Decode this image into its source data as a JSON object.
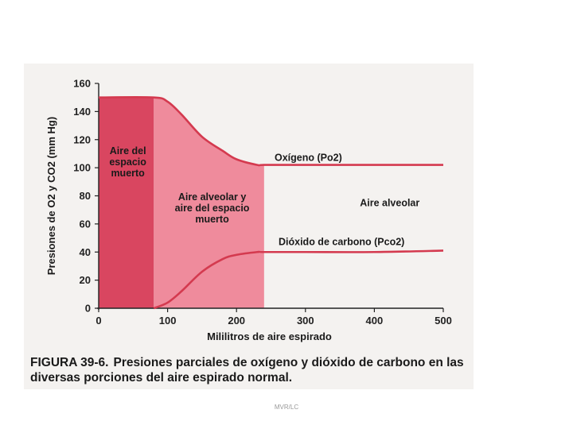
{
  "chart_data": {
    "type": "line",
    "ylabel": "Presiones de O2 y CO2 (mm Hg)",
    "xlabel": "Mililitros de aire espirado",
    "xlim": [
      0,
      500
    ],
    "ylim": [
      0,
      160
    ],
    "x_ticks": [
      0,
      100,
      200,
      300,
      400,
      500
    ],
    "y_ticks": [
      0,
      20,
      40,
      60,
      80,
      100,
      120,
      140,
      160
    ],
    "series": [
      {
        "name": "Oxígeno (Po2)",
        "x": [
          0,
          80,
          100,
          120,
          150,
          180,
          200,
          230,
          240,
          300,
          400,
          500
        ],
        "y": [
          150,
          150,
          147,
          138,
          122,
          112,
          106,
          102,
          102,
          102,
          102,
          102
        ]
      },
      {
        "name": "Dióxido de carbono (Pco2)",
        "x": [
          80,
          100,
          120,
          150,
          180,
          200,
          230,
          240,
          300,
          400,
          500
        ],
        "y": [
          0,
          4,
          12,
          26,
          35,
          38,
          40,
          40,
          40,
          40,
          41
        ]
      }
    ],
    "regions": [
      {
        "label": "Aire del espacio muerto",
        "lines": [
          "Aire del",
          "espacio",
          "muerto"
        ],
        "x_start": 0,
        "x_end": 80,
        "color": "#d94660"
      },
      {
        "label": "Aire alveolar y aire del espacio muerto",
        "lines": [
          "Aire alveolar y",
          "aire del espacio",
          "muerto"
        ],
        "x_start": 80,
        "x_end": 240,
        "color": "#ef8b9c"
      }
    ],
    "annotations": [
      {
        "text": "Aire alveolar",
        "x": 390,
        "y": 75
      }
    ],
    "line_color": "#d43a4f",
    "grid": false
  },
  "caption": {
    "figure_number": "FIGURA 39-6.",
    "text": "Presiones parciales de oxígeno y dióxido de carbono en las diversas porciones del aire espirado normal."
  },
  "footer": "MVR/LC"
}
